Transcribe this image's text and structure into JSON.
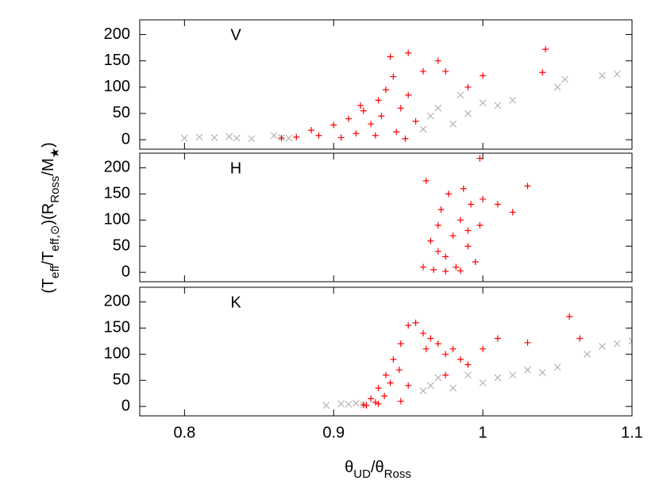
{
  "chart_data": [
    {
      "type": "scatter",
      "label": "V",
      "xlim": [
        0.77,
        1.1
      ],
      "ylim": [
        -18,
        228
      ],
      "xticks": [
        0.8,
        0.9,
        1,
        1.1
      ],
      "yticks": [
        0,
        50,
        100,
        150,
        200
      ],
      "xtick_labels": false,
      "series": [
        {
          "color": "#b4b4b4",
          "marker": "x",
          "x": [
            0.8,
            0.81,
            0.82,
            0.83,
            0.835,
            0.845,
            0.86,
            0.865,
            0.87,
            0.96,
            0.965,
            0.97,
            0.98,
            0.985,
            0.99,
            1.0,
            1.01,
            1.02,
            1.05,
            1.08,
            1.09,
            1.055
          ],
          "values": [
            3,
            5,
            4,
            6,
            3,
            2,
            8,
            4,
            3,
            20,
            45,
            60,
            30,
            85,
            50,
            70,
            65,
            75,
            100,
            122,
            125,
            115
          ]
        },
        {
          "color": "#ff0000",
          "marker": "+",
          "x": [
            0.865,
            0.875,
            0.885,
            0.89,
            0.9,
            0.905,
            0.91,
            0.915,
            0.92,
            0.925,
            0.93,
            0.935,
            0.94,
            0.945,
            0.938,
            0.95,
            0.948,
            0.96,
            0.975,
            0.99,
            0.97,
            1.0,
            1.042,
            1.04,
            0.928,
            0.942,
            0.918,
            0.932,
            0.955,
            0.95
          ],
          "values": [
            3,
            5,
            18,
            8,
            28,
            4,
            40,
            12,
            55,
            30,
            75,
            95,
            120,
            60,
            158,
            165,
            2,
            130,
            130,
            100,
            150,
            122,
            172,
            128,
            8,
            15,
            65,
            45,
            35,
            85
          ]
        }
      ]
    },
    {
      "type": "scatter",
      "label": "H",
      "xlim": [
        0.77,
        1.1
      ],
      "ylim": [
        -18,
        228
      ],
      "xticks": [
        0.8,
        0.9,
        1,
        1.1
      ],
      "yticks": [
        0,
        50,
        100,
        150,
        200
      ],
      "xtick_labels": false,
      "ylabel": [
        {
          "text": "(T"
        },
        {
          "text": "eff",
          "sub": true
        },
        {
          "text": "/T"
        },
        {
          "text": "eff,⊙",
          "sub": true
        },
        {
          "text": ")(R"
        },
        {
          "text": "Ross",
          "sub": true
        },
        {
          "text": "/M"
        },
        {
          "text": "★",
          "sub": true
        },
        {
          "text": ")"
        }
      ],
      "series": [
        {
          "color": "#ff0000",
          "marker": "+",
          "x": [
            0.962,
            0.965,
            0.967,
            0.97,
            0.972,
            0.975,
            0.977,
            0.98,
            0.982,
            0.985,
            0.987,
            0.99,
            0.992,
            0.995,
            0.998,
            1.0,
            1.01,
            1.02,
            1.03,
            0.975,
            0.985,
            0.99,
            0.998,
            0.97,
            0.96
          ],
          "values": [
            175,
            60,
            5,
            40,
            120,
            30,
            150,
            70,
            10,
            100,
            160,
            50,
            130,
            20,
            90,
            140,
            130,
            115,
            165,
            2,
            3,
            80,
            218,
            90,
            10
          ]
        }
      ]
    },
    {
      "type": "scatter",
      "label": "K",
      "xlim": [
        0.77,
        1.1
      ],
      "ylim": [
        -18,
        228
      ],
      "xticks": [
        0.8,
        0.9,
        1,
        1.1
      ],
      "yticks": [
        0,
        50,
        100,
        150,
        200
      ],
      "xtick_labels": true,
      "xlabel": [
        {
          "text": "θ"
        },
        {
          "text": "UD",
          "sub": true
        },
        {
          "text": "/θ"
        },
        {
          "text": "Ross",
          "sub": true
        }
      ],
      "series": [
        {
          "color": "#b4b4b4",
          "marker": "x",
          "x": [
            0.895,
            0.905,
            0.91,
            0.915,
            0.92,
            0.96,
            0.965,
            0.97,
            0.98,
            0.99,
            1.0,
            1.01,
            1.02,
            1.03,
            1.04,
            1.05,
            1.07,
            1.08,
            1.09,
            1.1
          ],
          "values": [
            2,
            5,
            4,
            6,
            3,
            30,
            40,
            55,
            35,
            60,
            45,
            55,
            60,
            70,
            65,
            75,
            100,
            115,
            120,
            125
          ]
        },
        {
          "color": "#ff0000",
          "marker": "+",
          "x": [
            0.92,
            0.925,
            0.93,
            0.935,
            0.94,
            0.945,
            0.95,
            0.955,
            0.96,
            0.965,
            0.97,
            0.975,
            0.98,
            0.985,
            0.99,
            1.0,
            1.01,
            1.03,
            1.058,
            1.065,
            0.922,
            0.928,
            0.934,
            0.938,
            0.944,
            0.95,
            0.93,
            0.945,
            0.962,
            0.975
          ],
          "values": [
            3,
            15,
            35,
            60,
            90,
            120,
            155,
            160,
            140,
            130,
            120,
            100,
            110,
            90,
            80,
            110,
            130,
            122,
            172,
            130,
            2,
            8,
            20,
            45,
            70,
            40,
            5,
            10,
            110,
            60
          ]
        }
      ]
    }
  ]
}
